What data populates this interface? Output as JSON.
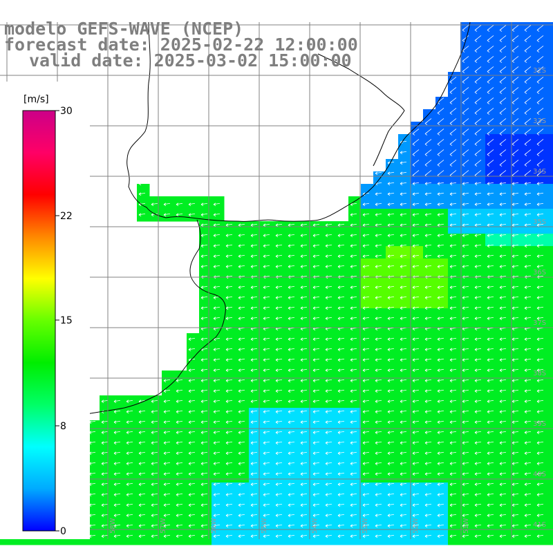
{
  "title": {
    "model": "modelo GEFS-WAVE (NCEP)",
    "forecast": "forecast date: 2025-02-22 12:00:00",
    "valid": "valid date: 2025-03-02 15:00:00"
  },
  "colorbar": {
    "unit": "[m/s]",
    "range": [
      0,
      30
    ],
    "ticks": [
      "30",
      "22",
      "15",
      "8",
      "0"
    ],
    "colors": [
      "#0000ff",
      "#00aaff",
      "#00ffff",
      "#00ff66",
      "#00ee00",
      "#66ff00",
      "#ffff00",
      "#ff8800",
      "#ff0000",
      "#ff0066",
      "#cc0088"
    ]
  },
  "map": {
    "ocean_colors": {
      "weak": "#0066ff",
      "low": "#00ccff",
      "mid": "#00ff66",
      "strong": "#22ee00",
      "peak": "#66ff00"
    },
    "land_color": "#ffffff",
    "coast_color": "#000000",
    "grid_color": "#808080",
    "arrow_color": "#ffffff",
    "lat_labels": [
      "32S",
      "33S",
      "34S",
      "35S",
      "36S",
      "37S",
      "38S",
      "39S",
      "40S",
      "41S"
    ],
    "lon_labels": [
      "60W",
      "59W",
      "58W",
      "57W",
      "56W",
      "55W",
      "54W",
      "53W",
      "52W",
      "51W"
    ]
  }
}
